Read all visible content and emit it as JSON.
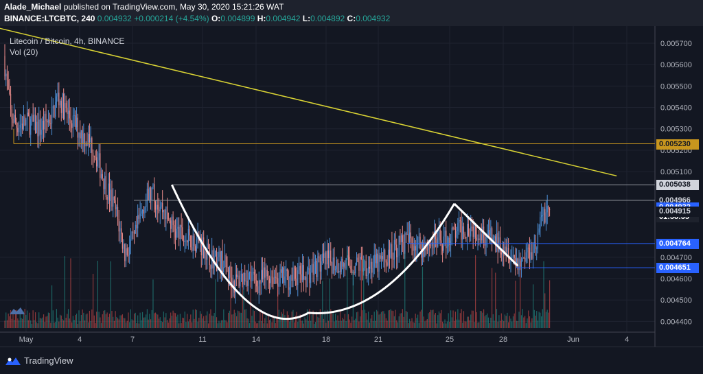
{
  "header": {
    "author": "Alade_Michael",
    "published_text": "published on TradingView.com, May 30, 2020 15:21:26 WAT",
    "symbol_line": "BINANCE:LTCBTC, 240",
    "price": "0.004932",
    "change": "+0.000214 (+4.54%)",
    "o_label": "O:",
    "o_value": "0.004899",
    "h_label": "H:",
    "h_value": "0.004942",
    "l_label": "L:",
    "l_value": "0.004892",
    "c_label": "C:",
    "c_value": "0.004932"
  },
  "legend": {
    "pair": "Litecoin / Bitcoin, 4h, BINANCE",
    "volume": "Vol (20)"
  },
  "footer": {
    "brand": "TradingView"
  },
  "colors": {
    "background": "#131722",
    "up": "#4d8fd6",
    "down": "#e88a8a",
    "trendline": "#d9d334",
    "resistance": "#c8961e",
    "support_blue": "#2962ff",
    "level_grey": "#787b86"
  },
  "chart_data": {
    "type": "candlestick",
    "title": "Litecoin / Bitcoin, 4h, BINANCE",
    "ylim": [
      0.00435,
      0.00578
    ],
    "y_ticks": [
      "0.005700",
      "0.005600",
      "0.005500",
      "0.005400",
      "0.005300",
      "0.005200",
      "0.005100",
      "0.004700",
      "0.004600",
      "0.004500",
      "0.004400"
    ],
    "x_ticks": [
      "May",
      "4",
      "7",
      "11",
      "14",
      "18",
      "21",
      "25",
      "28",
      "Jun",
      "4"
    ],
    "price_labels": [
      {
        "text": "0.005230",
        "value": 0.00523,
        "style": "gold"
      },
      {
        "text": "0.005038",
        "value": 0.005038,
        "style": "grey"
      },
      {
        "text": "0.004966",
        "value": 0.004966,
        "style": "plain"
      },
      {
        "text": "0.004932",
        "value": 0.004932,
        "style": "blue"
      },
      {
        "text": "01:38:35",
        "value": 0.00489,
        "style": "dark"
      },
      {
        "text": "0.004915",
        "value": 0.004915,
        "style": "plain"
      },
      {
        "text": "0.004764",
        "value": 0.004764,
        "style": "blue"
      },
      {
        "text": "0.004651",
        "value": 0.004651,
        "style": "blue"
      }
    ],
    "close_path": [
      [
        0,
        0.0056
      ],
      [
        5,
        0.00537
      ],
      [
        10,
        0.00532
      ],
      [
        20,
        0.00533
      ],
      [
        30,
        0.0053
      ],
      [
        40,
        0.00536
      ],
      [
        45,
        0.00545
      ],
      [
        55,
        0.00535
      ],
      [
        65,
        0.00528
      ],
      [
        75,
        0.00522
      ],
      [
        85,
        0.00505
      ],
      [
        95,
        0.0049
      ],
      [
        102,
        0.00472
      ],
      [
        110,
        0.00478
      ],
      [
        118,
        0.00495
      ],
      [
        125,
        0.005
      ],
      [
        135,
        0.00492
      ],
      [
        145,
        0.00482
      ],
      [
        155,
        0.00478
      ],
      [
        165,
        0.00478
      ],
      [
        175,
        0.0047
      ],
      [
        185,
        0.00468
      ],
      [
        195,
        0.00458
      ],
      [
        205,
        0.00462
      ],
      [
        215,
        0.00458
      ],
      [
        225,
        0.00462
      ],
      [
        235,
        0.0046
      ],
      [
        242,
        0.0046
      ],
      [
        250,
        0.00462
      ],
      [
        255,
        0.00461
      ],
      [
        265,
        0.00466
      ],
      [
        275,
        0.00468
      ],
      [
        285,
        0.00467
      ],
      [
        295,
        0.00466
      ],
      [
        305,
        0.00467
      ],
      [
        315,
        0.00466
      ],
      [
        325,
        0.0047
      ],
      [
        335,
        0.00476
      ],
      [
        345,
        0.00478
      ],
      [
        355,
        0.00475
      ],
      [
        365,
        0.00477
      ],
      [
        375,
        0.00478
      ],
      [
        385,
        0.00482
      ],
      [
        395,
        0.00485
      ],
      [
        402,
        0.00483
      ],
      [
        410,
        0.0048
      ],
      [
        420,
        0.00476
      ],
      [
        425,
        0.00477
      ],
      [
        432,
        0.0047
      ],
      [
        438,
        0.00468
      ],
      [
        445,
        0.00473
      ],
      [
        452,
        0.00477
      ],
      [
        457,
        0.0049
      ],
      [
        463,
        0.00493
      ]
    ],
    "series": [
      {
        "name": "Volume",
        "color_up": "#26a69a",
        "color_down": "#ef5350"
      }
    ],
    "overlays": [
      {
        "name": "descending trendline",
        "from": [
          -20,
          0.00579
        ],
        "to": [
          520,
          0.00508
        ]
      },
      {
        "name": "resistance 0.005230",
        "value": 0.00523
      },
      {
        "name": "level 0.005038",
        "value": 0.005038
      },
      {
        "name": "level 0.004966",
        "value": 0.004966
      },
      {
        "name": "level 0.004764",
        "value": 0.004764
      },
      {
        "name": "level 0.004651",
        "value": 0.004651
      },
      {
        "name": "cup-and-handle pattern"
      }
    ]
  }
}
